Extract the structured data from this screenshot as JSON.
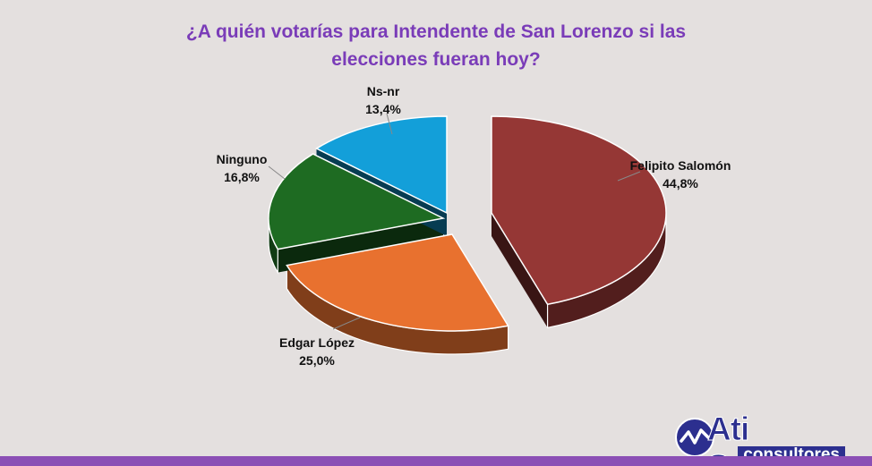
{
  "title_lines": [
    "¿A quién votarías para Intendente de San Lorenzo si las",
    "elecciones fueran hoy?"
  ],
  "colors": {
    "title": "#7a3cb8",
    "background": "#e4e0df",
    "bottom_bar": "#8b4fb5",
    "logo_primary": "#2c2f8f"
  },
  "chart_data": {
    "type": "pie",
    "style": "3d-exploded",
    "title": "¿A quién votarías para Intendente de San Lorenzo si las elecciones fueran hoy?",
    "slices": [
      {
        "label": "Felipito Salomón",
        "value_label": "44,8%",
        "value": 44.8,
        "color": "#953735"
      },
      {
        "label": "Edgar López",
        "value_label": "25,0%",
        "value": 25.0,
        "color": "#e8712f"
      },
      {
        "label": "Ninguno",
        "value_label": "16,8%",
        "value": 16.8,
        "color": "#1e6b22"
      },
      {
        "label": "Ns-nr",
        "value_label": "13,4%",
        "value": 13.4,
        "color": "#139fd9"
      }
    ]
  },
  "logo": {
    "brand": "Ati Snead",
    "sub": "consultores"
  }
}
